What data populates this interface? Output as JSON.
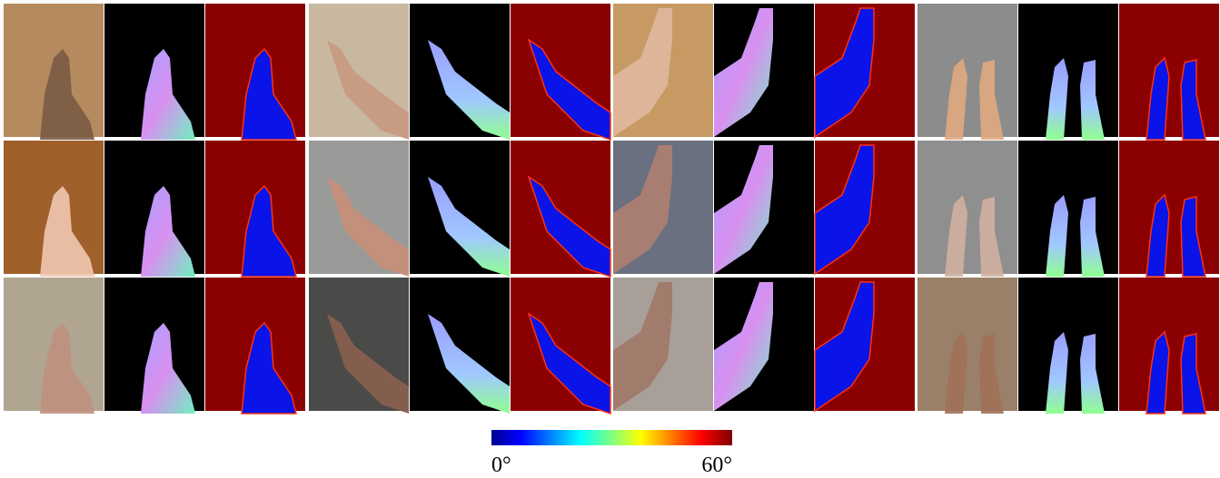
{
  "colorbar": {
    "min_label": "0°",
    "max_label": "60°"
  }
}
